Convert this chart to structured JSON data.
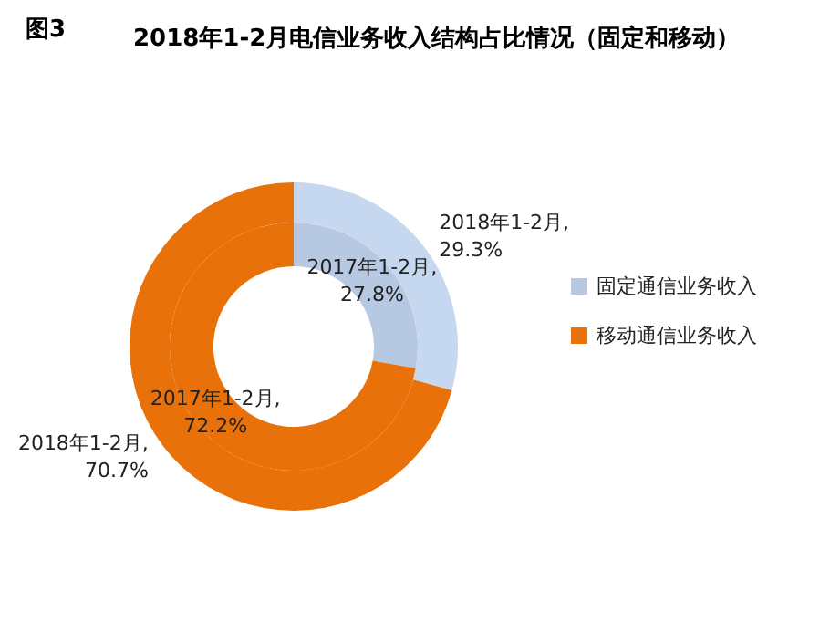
{
  "chart_data": {
    "type": "donut",
    "title": "2018年1-2月电信业务收入结构占比情况（固定和移动）",
    "annotations": [
      "图3"
    ],
    "categories": [
      "固定通信业务收入",
      "移动通信业务收入"
    ],
    "series": [
      {
        "name": "2017年1-2月,",
        "colors": [
          "#b7c9e2",
          "#e8710a"
        ],
        "values": [
          27.8,
          72.2
        ],
        "value_labels": [
          "27.8%",
          "72.2%"
        ]
      },
      {
        "name": "2018年1-2月,",
        "colors": [
          "#c6d8f0",
          "#e8710a"
        ],
        "values": [
          29.3,
          70.7
        ],
        "value_labels": [
          "29.3%",
          "70.7%"
        ]
      }
    ],
    "legend": "right"
  }
}
